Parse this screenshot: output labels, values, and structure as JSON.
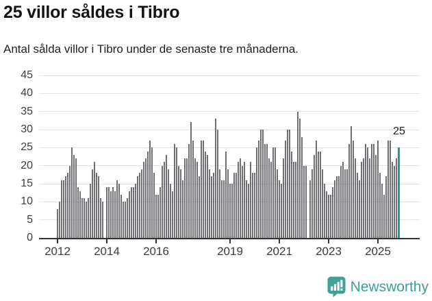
{
  "header": {
    "title": "25 villor såldes i Tibro",
    "subtitle": "Antal sålda villor i Tibro under de senaste tre månaderna."
  },
  "chart_data": {
    "type": "bar",
    "title": "25 villor såldes i Tibro",
    "description": "Rolling three-month count of houses sold, monthly bars; 0 = gap month with no bar",
    "x_start": "2012-01",
    "x_end": "2025-11",
    "values": [
      8,
      10,
      16,
      16,
      17,
      18,
      20,
      25,
      23,
      22,
      14,
      13,
      11,
      11,
      10,
      11,
      15,
      19,
      21,
      18,
      17,
      11,
      10,
      0,
      14,
      14,
      13,
      14,
      13,
      16,
      15,
      12,
      10,
      10,
      11,
      13,
      14,
      14,
      15,
      17,
      18,
      19,
      21,
      22,
      24,
      27,
      25,
      18,
      12,
      12,
      14,
      20,
      21,
      23,
      19,
      15,
      13,
      26,
      25,
      20,
      19,
      16,
      22,
      22,
      26,
      32,
      27,
      22,
      21,
      17,
      27,
      27,
      24,
      23,
      19,
      17,
      18,
      33,
      30,
      19,
      16,
      16,
      24,
      19,
      15,
      15,
      18,
      18,
      21,
      22,
      20,
      21,
      16,
      15,
      21,
      18,
      18,
      25,
      27,
      30,
      30,
      26,
      26,
      22,
      21,
      25,
      25,
      19,
      16,
      15,
      22,
      27,
      30,
      30,
      24,
      21,
      21,
      35,
      33,
      28,
      20,
      20,
      0,
      16,
      19,
      23,
      27,
      24,
      24,
      19,
      15,
      13,
      12,
      12,
      14,
      16,
      17,
      17,
      20,
      21,
      19,
      19,
      26,
      31,
      27,
      22,
      18,
      16,
      21,
      22,
      26,
      25,
      22,
      26,
      26,
      23,
      27,
      18,
      15,
      12,
      17,
      27,
      27,
      21,
      20,
      22,
      25
    ],
    "ylim": [
      0,
      45
    ],
    "y_ticks": [
      0,
      5,
      10,
      15,
      20,
      25,
      30,
      35,
      40,
      45
    ],
    "x_tick_labels": [
      "2012",
      "2014",
      "2016",
      "2019",
      "2021",
      "2023",
      "2025"
    ],
    "x_tick_month_indices": [
      0,
      24,
      48,
      84,
      108,
      132,
      156
    ],
    "grid": true,
    "legend": "none",
    "bar_color": "#6e6e73",
    "highlight_color": "#169e97",
    "highlight_index": 166,
    "annotation": {
      "text": "25",
      "target": "last-bar"
    }
  },
  "footer": {
    "brand_name": "Newsworthy",
    "brand_color": "#3da099",
    "logo_icon": "bar-chart-speech-bubble-icon"
  }
}
